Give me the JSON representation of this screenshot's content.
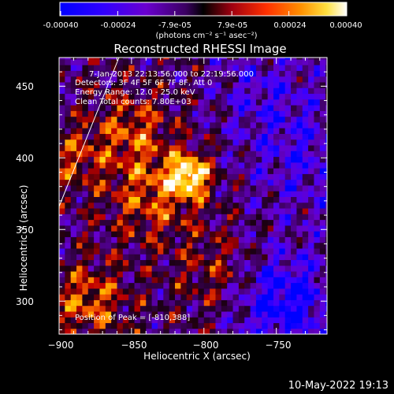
{
  "colorbar": {
    "min": -0.0004,
    "max": 0.0004,
    "tick_labels": [
      "-0.00040",
      "-0.00024",
      "-7.9e-05",
      "7.9e-05",
      "0.00024",
      "0.00040"
    ],
    "unit_label": "(photons cm⁻² s⁻¹ asec⁻²)"
  },
  "chart_data": {
    "type": "heatmap",
    "title": "Reconstructed RHESSI Image",
    "xlabel": "Heliocentric X (arcsec)",
    "ylabel": "Heliocentric Y (arcsec)",
    "xlim": [
      -900,
      -715
    ],
    "ylim": [
      277,
      470
    ],
    "x_ticks": [
      -900,
      -850,
      -800,
      -750
    ],
    "y_ticks": [
      300,
      350,
      400,
      450
    ],
    "x_tick_labels": [
      "−900",
      "−850",
      "−800",
      "−750"
    ],
    "y_tick_labels": [
      "300",
      "350",
      "400",
      "450"
    ],
    "peak": {
      "x": -810,
      "y": 388
    },
    "colormap": [
      "#0000ff",
      "#4000ff",
      "#6600cc",
      "#400064",
      "#1a0010",
      "#c00000",
      "#ff7000",
      "#ffd000",
      "#ffffff"
    ],
    "annotations": {
      "time": "7-Jan-2013 22:13:56.000 to 22:19:56.000",
      "detectors": "Detectors: 3F 4F 5F 6F 7F 8F, Att 0",
      "energy": "Energy Range: 12.0 - 25.0 keV",
      "method": "Clean    Total counts: 7.80E+03",
      "peak": "Position of Peak = [-810,388]"
    }
  },
  "timestamp": "10-May-2022 19:13"
}
